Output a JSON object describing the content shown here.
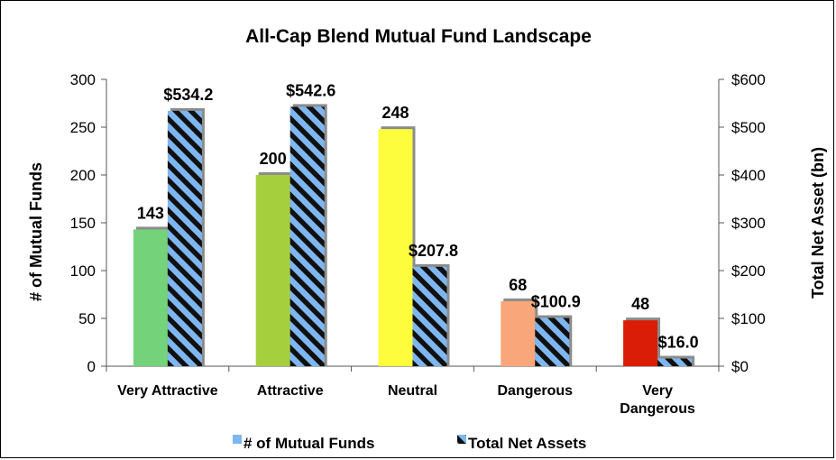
{
  "chart_data": {
    "type": "bar",
    "title": "All-Cap Blend Mutual Fund Landscape",
    "categories": [
      [
        "Very Attractive"
      ],
      [
        "Attractive"
      ],
      [
        "Neutral"
      ],
      [
        "Dangerous"
      ],
      [
        "Very",
        "Dangerous"
      ]
    ],
    "y_left": {
      "label": "# of Mutual Funds",
      "ylim": [
        0,
        300
      ],
      "ticks": [
        "0",
        "50",
        "100",
        "150",
        "200",
        "250",
        "300"
      ]
    },
    "y_right": {
      "label": "Total Net Asset (bn)",
      "ylim": [
        0,
        600
      ],
      "ticks": [
        "$0",
        "$100",
        "$200",
        "$300",
        "$400",
        "$500",
        "$600"
      ]
    },
    "series": [
      {
        "name": "# of Mutual Funds",
        "axis": "left",
        "values": [
          143,
          200,
          248,
          68,
          48
        ],
        "labels": [
          "143",
          "200",
          "248",
          "68",
          "48"
        ],
        "colors": [
          "#74d27a",
          "#a6cf3e",
          "#fdfd3d",
          "#f9a77a",
          "#d91d06"
        ]
      },
      {
        "name": "Total Net Assets",
        "axis": "right",
        "values": [
          534.2,
          542.6,
          207.8,
          100.9,
          16.0
        ],
        "labels": [
          "$534.2",
          "$542.6",
          "$207.8",
          "$100.9",
          "$16.0"
        ],
        "pattern": "diagonal stripes",
        "colors": [
          "#7eb6f0",
          "#101010"
        ]
      }
    ],
    "legend": {
      "position": "bottom"
    },
    "grid": false
  }
}
